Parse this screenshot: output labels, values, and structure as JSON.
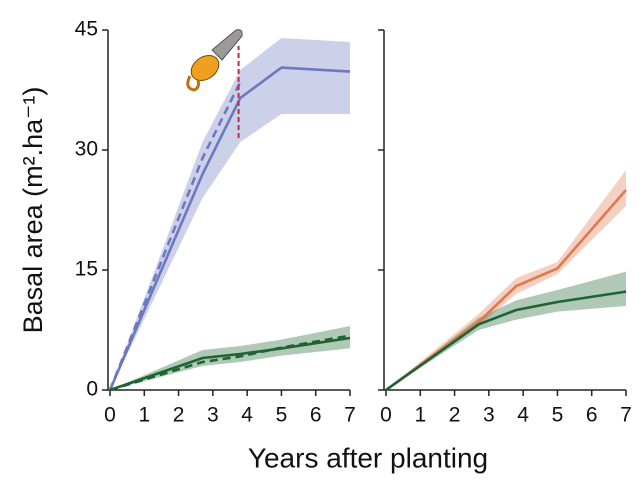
{
  "chart_data": [
    {
      "type": "line",
      "ylabel": "Basal area (m².ha⁻¹)",
      "xlabel": "Years after planting",
      "xlim": [
        0,
        7
      ],
      "ylim": [
        0,
        45
      ],
      "xticks": [
        0,
        1,
        2,
        3,
        4,
        5,
        6,
        7
      ],
      "yticks": [
        0,
        15,
        30,
        45
      ],
      "cut_line": {
        "x": 3.75,
        "y": [
          31.5,
          43
        ],
        "color": "#c8283c"
      },
      "series": [
        {
          "color": "#6c78c0",
          "x": [
            0,
            2.7,
            3.8,
            5,
            7
          ],
          "values": [
            0,
            27,
            36.5,
            40.3,
            39.8
          ],
          "lower": [
            0,
            24,
            31,
            34.5,
            34.5
          ],
          "upper": [
            0,
            31,
            40,
            44,
            43.5
          ]
        },
        {
          "color": "#6c78c0",
          "dash": true,
          "x": [
            0,
            2.7,
            3.8
          ],
          "values": [
            0,
            29,
            38.5
          ]
        },
        {
          "color": "#1e6432",
          "x": [
            0,
            2.7,
            3.8,
            5,
            7
          ],
          "values": [
            0,
            4,
            4.5,
            5.2,
            6.5
          ],
          "lower": [
            0,
            3,
            3.5,
            4.3,
            5.2
          ],
          "upper": [
            0,
            5,
            5.5,
            6.3,
            8
          ]
        },
        {
          "color": "#1e6432",
          "dash": true,
          "x": [
            0,
            2.7,
            3.8,
            5,
            7
          ],
          "values": [
            0,
            3.5,
            4.2,
            5.3,
            6.8
          ]
        }
      ]
    },
    {
      "type": "line",
      "xlim": [
        0,
        7
      ],
      "ylim": [
        0,
        45
      ],
      "xticks": [
        0,
        1,
        2,
        3,
        4,
        5,
        6,
        7
      ],
      "yticks": [
        0,
        15,
        30,
        45
      ],
      "series": [
        {
          "color": "#e07850",
          "x": [
            0,
            2.7,
            3.8,
            5,
            7
          ],
          "values": [
            0,
            8.5,
            13,
            15.2,
            25
          ],
          "lower": [
            0,
            8,
            12,
            14.5,
            23
          ],
          "upper": [
            0,
            9.5,
            14,
            16,
            27.5
          ]
        },
        {
          "color": "#1e6432",
          "x": [
            0,
            2.7,
            3.8,
            5,
            7
          ],
          "values": [
            0,
            8.2,
            10,
            11,
            12.3
          ],
          "lower": [
            0,
            7.5,
            8.8,
            9.8,
            10.5
          ],
          "upper": [
            0,
            9,
            11.2,
            12.5,
            14.8
          ]
        }
      ]
    }
  ]
}
